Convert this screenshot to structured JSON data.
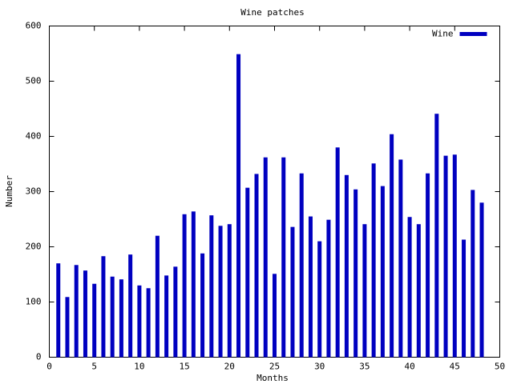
{
  "chart_data": {
    "type": "bar",
    "title": "Wine patches",
    "x_label": "Months",
    "y_label": "Number",
    "x": [
      1,
      2,
      3,
      4,
      5,
      6,
      7,
      8,
      9,
      10,
      11,
      12,
      13,
      14,
      15,
      16,
      17,
      18,
      19,
      20,
      21,
      22,
      23,
      24,
      25,
      26,
      27,
      28,
      29,
      30,
      31,
      32,
      33,
      34,
      35,
      36,
      37,
      38,
      39,
      40,
      41,
      42,
      43,
      44,
      45,
      46,
      47,
      48
    ],
    "series": [
      {
        "name": "Wine",
        "color": "#0000c0",
        "values": [
          170,
          109,
          167,
          157,
          133,
          183,
          146,
          141,
          186,
          130,
          125,
          220,
          148,
          164,
          259,
          264,
          188,
          257,
          238,
          241,
          549,
          307,
          332,
          362,
          151,
          362,
          236,
          333,
          255,
          210,
          249,
          380,
          330,
          304,
          241,
          351,
          310,
          404,
          358,
          254,
          241,
          333,
          441,
          365,
          367,
          213,
          303,
          280
        ]
      }
    ],
    "xlim": [
      0,
      50
    ],
    "xticks": [
      0,
      5,
      10,
      15,
      20,
      25,
      30,
      35,
      40,
      45,
      50
    ],
    "ylim": [
      0,
      600
    ],
    "yticks": [
      0,
      100,
      200,
      300,
      400,
      500,
      600
    ],
    "grid": false,
    "legend": "top right"
  }
}
